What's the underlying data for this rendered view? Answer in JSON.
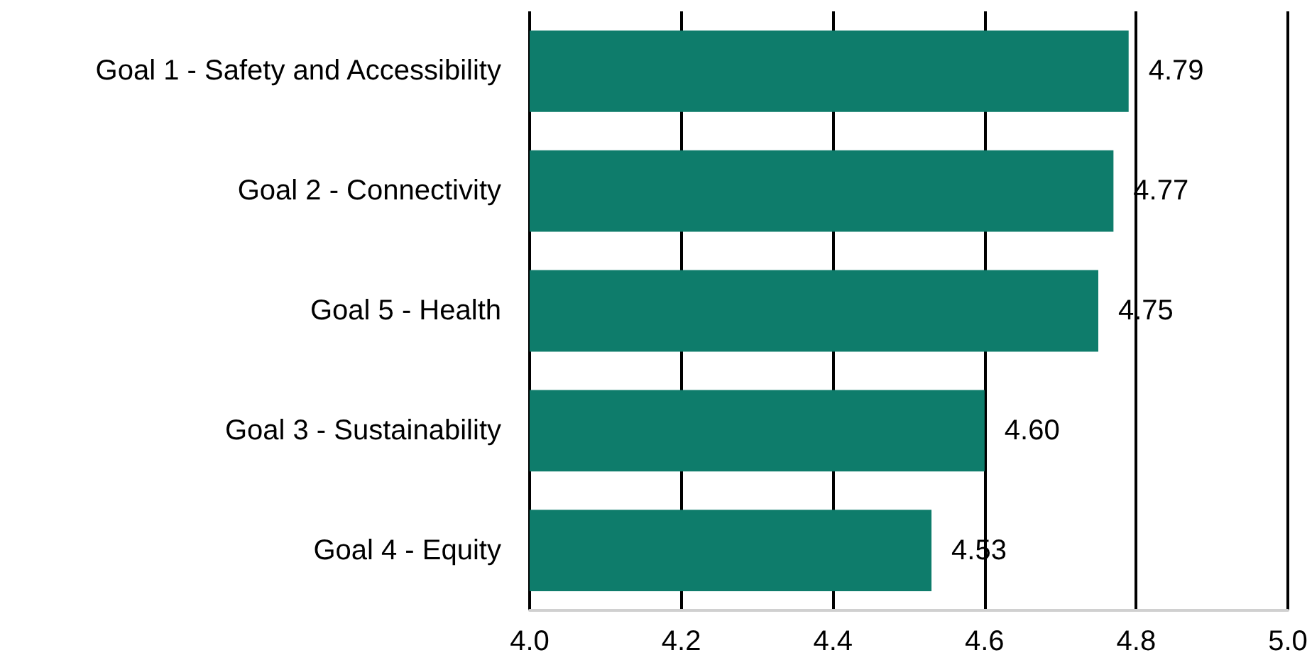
{
  "chart_data": {
    "type": "bar",
    "orientation": "horizontal",
    "categories": [
      "Goal 1 - Safety and Accessibility",
      "Goal 2 - Connectivity",
      "Goal 5 - Health",
      "Goal 3 - Sustainability",
      "Goal 4 - Equity"
    ],
    "values": [
      4.79,
      4.77,
      4.75,
      4.6,
      4.53
    ],
    "value_labels": [
      "4.79",
      "4.77",
      "4.75",
      "4.60",
      "4.53"
    ],
    "color": "#0e7c6b",
    "xlim": [
      4,
      5
    ],
    "xticks": [
      {
        "value": 4,
        "label": "4.0"
      },
      {
        "value": 4.2,
        "label": "4.2"
      },
      {
        "value": 4.4,
        "label": "4.4"
      },
      {
        "value": 4.6,
        "label": "4.6"
      },
      {
        "value": 4.8,
        "label": "4.8"
      },
      {
        "value": 5,
        "label": "5.0"
      }
    ],
    "grid": "x"
  }
}
